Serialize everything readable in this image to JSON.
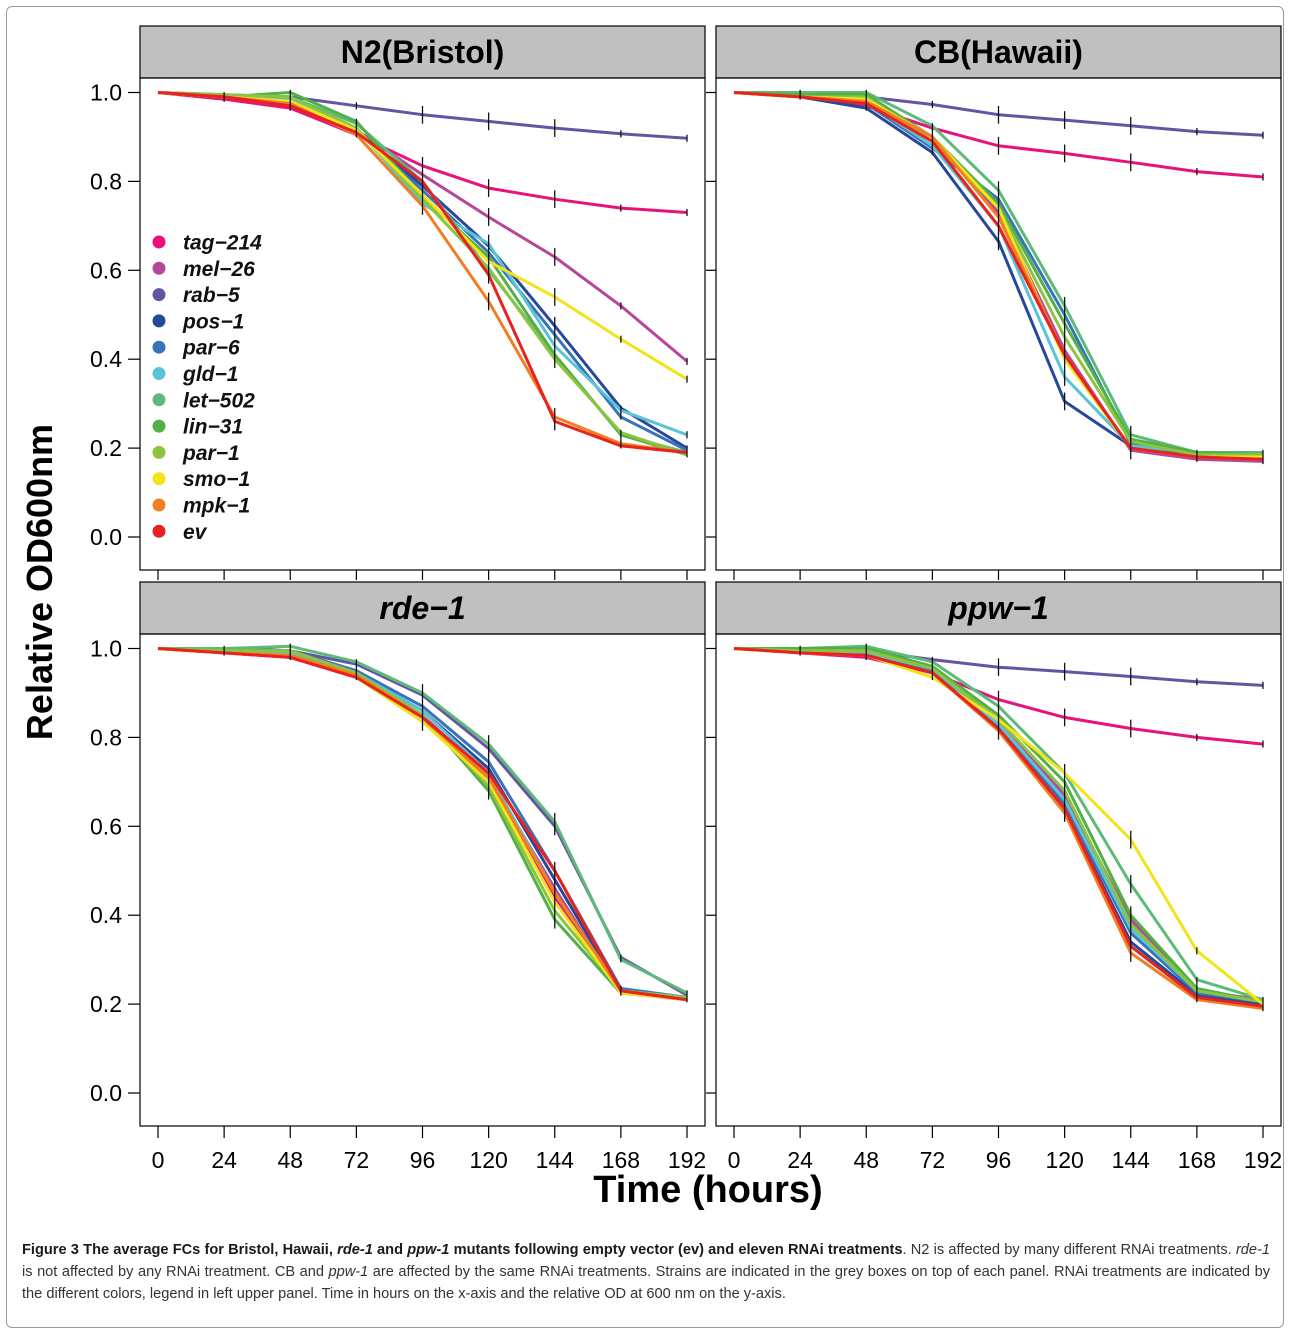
{
  "colors": {
    "tag-214": "#e8127a",
    "mel-26": "#b4479a",
    "rab-5": "#6553a4",
    "pos-1": "#26489c",
    "par-6": "#3a74b8",
    "gld-1": "#5bc3d6",
    "let-502": "#5dba79",
    "lin-31": "#52b046",
    "par-1": "#8bc43f",
    "smo-1": "#f2e31a",
    "mpk-1": "#f07e25",
    "ev": "#e8231f"
  },
  "chart_data": {
    "type": "line",
    "ylabel": "Relative OD600nm",
    "xlabel": "Time (hours)",
    "x": [
      0,
      24,
      48,
      72,
      96,
      120,
      144,
      168,
      192
    ],
    "ylim": [
      0,
      1
    ],
    "yticks": [
      "0.0",
      "0.2",
      "0.4",
      "0.6",
      "0.8",
      "1.0"
    ],
    "xticks": [
      "0",
      "24",
      "48",
      "72",
      "96",
      "120",
      "144",
      "168",
      "192"
    ],
    "legend": {
      "placement": "left upper panel",
      "entries": [
        "tag−214",
        "mel−26",
        "rab−5",
        "pos−1",
        "par−6",
        "gld−1",
        "let−502",
        "lin−31",
        "par−1",
        "smo−1",
        "mpk−1",
        "ev"
      ]
    },
    "panels": [
      {
        "strip": "N2(Bristol)",
        "italic": false,
        "series": [
          {
            "name": "tag−214",
            "key": "tag-214",
            "values": [
              1.0,
              0.985,
              0.965,
              0.905,
              0.835,
              0.785,
              0.76,
              0.74,
              0.73
            ]
          },
          {
            "name": "mel−26",
            "key": "mel-26",
            "values": [
              1.0,
              0.99,
              0.975,
              0.915,
              0.815,
              0.72,
              0.63,
              0.52,
              0.395
            ]
          },
          {
            "name": "rab−5",
            "key": "rab-5",
            "values": [
              1.0,
              0.995,
              0.99,
              0.97,
              0.95,
              0.935,
              0.92,
              0.907,
              0.897
            ]
          },
          {
            "name": "pos−1",
            "key": "pos-1",
            "values": [
              1.0,
              0.99,
              0.985,
              0.915,
              0.79,
              0.655,
              0.475,
              0.29,
              0.2
            ]
          },
          {
            "name": "par−6",
            "key": "par-6",
            "values": [
              1.0,
              0.99,
              0.98,
              0.915,
              0.78,
              0.64,
              0.455,
              0.27,
              0.195
            ]
          },
          {
            "name": "gld−1",
            "key": "gld-1",
            "values": [
              1.0,
              0.99,
              0.985,
              0.92,
              0.75,
              0.66,
              0.43,
              0.285,
              0.23
            ]
          },
          {
            "name": "let−502",
            "key": "let-502",
            "values": [
              1.0,
              0.995,
              0.99,
              0.93,
              0.8,
              0.6,
              0.41,
              0.23,
              0.19
            ]
          },
          {
            "name": "lin−31",
            "key": "lin-31",
            "values": [
              1.0,
              0.99,
              1.0,
              0.935,
              0.765,
              0.63,
              0.41,
              0.23,
              0.185
            ]
          },
          {
            "name": "par−1",
            "key": "par-1",
            "values": [
              1.0,
              0.995,
              0.99,
              0.92,
              0.76,
              0.605,
              0.4,
              0.235,
              0.185
            ]
          },
          {
            "name": "smo−1",
            "key": "smo-1",
            "values": [
              1.0,
              0.99,
              0.98,
              0.915,
              0.77,
              0.62,
              0.54,
              0.445,
              0.355
            ]
          },
          {
            "name": "mpk−1",
            "key": "mpk-1",
            "values": [
              1.0,
              0.99,
              0.975,
              0.905,
              0.745,
              0.53,
              0.27,
              0.21,
              0.19
            ]
          },
          {
            "name": "ev",
            "key": "ev",
            "values": [
              1.0,
              0.99,
              0.97,
              0.91,
              0.8,
              0.59,
              0.26,
              0.205,
              0.19
            ]
          }
        ]
      },
      {
        "strip": "CB(Hawaii)",
        "italic": false,
        "series": [
          {
            "name": "tag−214",
            "key": "tag-214",
            "values": [
              1.0,
              0.99,
              0.97,
              0.92,
              0.88,
              0.863,
              0.843,
              0.822,
              0.81
            ]
          },
          {
            "name": "mel−26",
            "key": "mel-26",
            "values": [
              1.0,
              0.99,
              0.98,
              0.9,
              0.73,
              0.42,
              0.195,
              0.175,
              0.17
            ]
          },
          {
            "name": "rab−5",
            "key": "rab-5",
            "values": [
              1.0,
              0.995,
              0.99,
              0.973,
              0.95,
              0.938,
              0.925,
              0.912,
              0.904
            ]
          },
          {
            "name": "pos−1",
            "key": "pos-1",
            "values": [
              1.0,
              0.99,
              0.965,
              0.865,
              0.665,
              0.305,
              0.205,
              0.185,
              0.18
            ]
          },
          {
            "name": "par−6",
            "key": "par-6",
            "values": [
              1.0,
              0.99,
              0.975,
              0.875,
              0.76,
              0.5,
              0.21,
              0.185,
              0.18
            ]
          },
          {
            "name": "gld−1",
            "key": "gld-1",
            "values": [
              1.0,
              0.99,
              0.98,
              0.88,
              0.7,
              0.36,
              0.205,
              0.19,
              0.19
            ]
          },
          {
            "name": "let−502",
            "key": "let-502",
            "values": [
              1.0,
              1.0,
              1.0,
              0.925,
              0.78,
              0.52,
              0.23,
              0.19,
              0.19
            ]
          },
          {
            "name": "lin−31",
            "key": "lin-31",
            "values": [
              1.0,
              0.995,
              0.995,
              0.9,
              0.75,
              0.48,
              0.22,
              0.19,
              0.185
            ]
          },
          {
            "name": "par−1",
            "key": "par-1",
            "values": [
              1.0,
              0.99,
              0.99,
              0.89,
              0.74,
              0.45,
              0.215,
              0.185,
              0.185
            ]
          },
          {
            "name": "smo−1",
            "key": "smo-1",
            "values": [
              1.0,
              0.99,
              0.985,
              0.9,
              0.74,
              0.4,
              0.2,
              0.18,
              0.18
            ]
          },
          {
            "name": "mpk−1",
            "key": "mpk-1",
            "values": [
              1.0,
              0.99,
              0.98,
              0.9,
              0.72,
              0.41,
              0.2,
              0.18,
              0.175
            ]
          },
          {
            "name": "ev",
            "key": "ev",
            "values": [
              1.0,
              0.99,
              0.975,
              0.89,
              0.7,
              0.41,
              0.2,
              0.18,
              0.175
            ]
          }
        ]
      },
      {
        "strip": "rde−1",
        "italic": true,
        "series": [
          {
            "name": "tag−214",
            "key": "tag-214",
            "values": [
              1.0,
              0.99,
              0.98,
              0.935,
              0.845,
              0.7,
              0.44,
              0.225,
              0.21
            ]
          },
          {
            "name": "mel−26",
            "key": "mel-26",
            "values": [
              1.0,
              0.99,
              0.985,
              0.94,
              0.85,
              0.71,
              0.46,
              0.225,
              0.215
            ]
          },
          {
            "name": "rab−5",
            "key": "rab-5",
            "values": [
              1.0,
              1.0,
              0.995,
              0.965,
              0.895,
              0.775,
              0.6,
              0.305,
              0.22
            ]
          },
          {
            "name": "pos−1",
            "key": "pos-1",
            "values": [
              1.0,
              0.995,
              0.99,
              0.945,
              0.86,
              0.73,
              0.48,
              0.23,
              0.215
            ]
          },
          {
            "name": "par−6",
            "key": "par-6",
            "values": [
              1.0,
              1.0,
              0.995,
              0.95,
              0.87,
              0.745,
              0.5,
              0.235,
              0.215
            ]
          },
          {
            "name": "gld−1",
            "key": "gld-1",
            "values": [
              1.0,
              0.995,
              0.99,
              0.945,
              0.86,
              0.72,
              0.45,
              0.23,
              0.215
            ]
          },
          {
            "name": "let−502",
            "key": "let-502",
            "values": [
              1.0,
              1.0,
              1.005,
              0.97,
              0.9,
              0.785,
              0.61,
              0.3,
              0.225
            ]
          },
          {
            "name": "lin−31",
            "key": "lin-31",
            "values": [
              1.0,
              0.995,
              0.995,
              0.945,
              0.85,
              0.68,
              0.39,
              0.225,
              0.215
            ]
          },
          {
            "name": "par−1",
            "key": "par-1",
            "values": [
              1.0,
              0.995,
              0.995,
              0.945,
              0.85,
              0.69,
              0.41,
              0.23,
              0.215
            ]
          },
          {
            "name": "smo−1",
            "key": "smo-1",
            "values": [
              1.0,
              0.99,
              0.985,
              0.935,
              0.835,
              0.7,
              0.43,
              0.225,
              0.21
            ]
          },
          {
            "name": "mpk−1",
            "key": "mpk-1",
            "values": [
              1.0,
              0.99,
              0.985,
              0.94,
              0.845,
              0.71,
              0.45,
              0.23,
              0.21
            ]
          },
          {
            "name": "ev",
            "key": "ev",
            "values": [
              1.0,
              0.99,
              0.98,
              0.935,
              0.845,
              0.72,
              0.5,
              0.23,
              0.21
            ]
          }
        ]
      },
      {
        "strip": "ppw−1",
        "italic": true,
        "series": [
          {
            "name": "tag−214",
            "key": "tag-214",
            "values": [
              1.0,
              0.99,
              0.98,
              0.945,
              0.885,
              0.845,
              0.82,
              0.8,
              0.785
            ]
          },
          {
            "name": "mel−26",
            "key": "mel-26",
            "values": [
              1.0,
              0.995,
              0.99,
              0.955,
              0.84,
              0.67,
              0.39,
              0.23,
              0.21
            ]
          },
          {
            "name": "rab−5",
            "key": "rab-5",
            "values": [
              1.0,
              1.0,
              0.995,
              0.975,
              0.958,
              0.948,
              0.937,
              0.925,
              0.917
            ]
          },
          {
            "name": "pos−1",
            "key": "pos-1",
            "values": [
              1.0,
              0.995,
              0.99,
              0.95,
              0.82,
              0.64,
              0.34,
              0.22,
              0.2
            ]
          },
          {
            "name": "par−6",
            "key": "par-6",
            "values": [
              1.0,
              0.995,
              0.99,
              0.95,
              0.825,
              0.65,
              0.36,
              0.225,
              0.205
            ]
          },
          {
            "name": "gld−1",
            "key": "gld-1",
            "values": [
              1.0,
              0.995,
              0.99,
              0.955,
              0.83,
              0.66,
              0.37,
              0.23,
              0.205
            ]
          },
          {
            "name": "let−502",
            "key": "let-502",
            "values": [
              1.0,
              1.0,
              1.005,
              0.97,
              0.87,
              0.72,
              0.47,
              0.255,
              0.21
            ]
          },
          {
            "name": "lin−31",
            "key": "lin-31",
            "values": [
              1.0,
              1.0,
              1.0,
              0.96,
              0.85,
              0.7,
              0.4,
              0.235,
              0.205
            ]
          },
          {
            "name": "par−1",
            "key": "par-1",
            "values": [
              1.0,
              0.995,
              0.995,
              0.955,
              0.84,
              0.68,
              0.38,
              0.23,
              0.205
            ]
          },
          {
            "name": "smo−1",
            "key": "smo-1",
            "values": [
              1.0,
              0.99,
              0.985,
              0.935,
              0.84,
              0.72,
              0.57,
              0.32,
              0.2
            ]
          },
          {
            "name": "mpk−1",
            "key": "mpk-1",
            "values": [
              1.0,
              0.99,
              0.985,
              0.945,
              0.815,
              0.63,
              0.315,
              0.21,
              0.19
            ]
          },
          {
            "name": "ev",
            "key": "ev",
            "values": [
              1.0,
              0.99,
              0.985,
              0.945,
              0.82,
              0.64,
              0.33,
              0.215,
              0.195
            ]
          }
        ]
      }
    ]
  },
  "caption": {
    "figure_label": "Figure 3",
    "title_parts": [
      " The average FCs for Bristol, Hawaii, ",
      "rde-1",
      " and ",
      "ppw-1",
      " mutants following empty vector (ev) and eleven RNAi treatments"
    ],
    "body_parts": [
      ". N2 is affected by many different RNAi treatments. ",
      "rde-1",
      " is not affected by any RNAi treatment. CB and ",
      "ppw-1",
      " are affected by the same RNAi treatments. Strains are indicated in the grey boxes on top of each panel. RNAi treatments are indicated by the different colors, legend in left upper panel. Time in hours on the x-axis and the relative OD at 600 nm on the y-axis."
    ]
  }
}
